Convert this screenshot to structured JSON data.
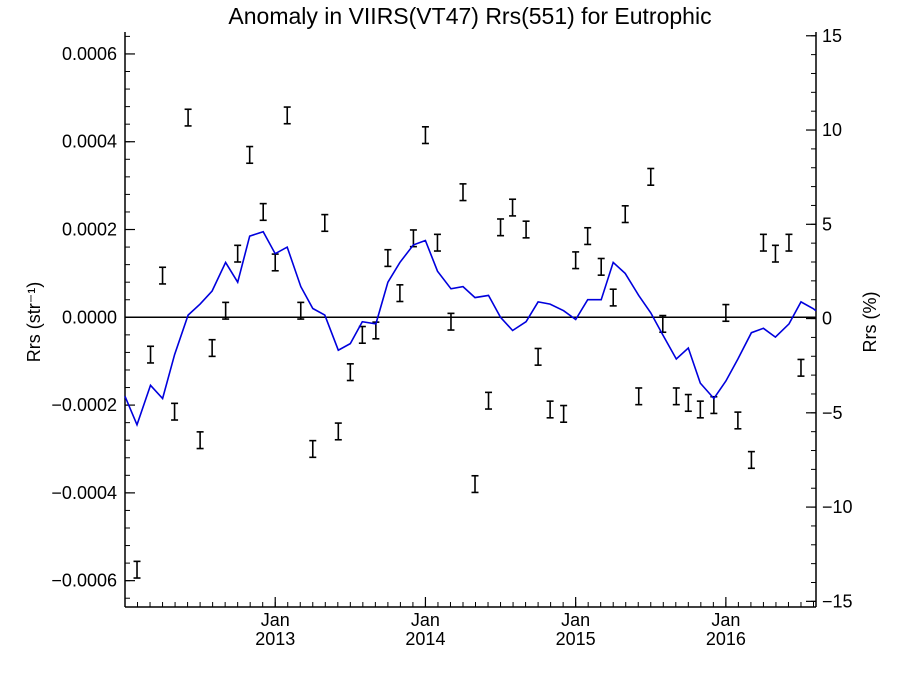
{
  "chart_data": {
    "type": "line",
    "title": "Anomaly in VIIRS(VT47) Rrs(551) for Eutrophic",
    "ylabel_left": "Rrs (str⁻¹)",
    "ylabel_right": "Rrs (%)",
    "ylim_left": [
      -0.00066,
      0.00065
    ],
    "ylim_right": [
      -15.3,
      15.2
    ],
    "xlim": [
      2012.0,
      2016.6
    ],
    "grid": false,
    "zero_line": true,
    "left_ticks": [
      {
        "value": 0.0006,
        "label": "0.0006"
      },
      {
        "value": 0.0004,
        "label": "0.0004"
      },
      {
        "value": 0.0002,
        "label": "0.0002"
      },
      {
        "value": 0.0,
        "label": "0.0000"
      },
      {
        "value": -0.0002,
        "label": "−0.0002"
      },
      {
        "value": -0.0004,
        "label": "−0.0004"
      },
      {
        "value": -0.0006,
        "label": "−0.0006"
      }
    ],
    "right_ticks": [
      {
        "value": 15,
        "label": "15"
      },
      {
        "value": 10,
        "label": "10"
      },
      {
        "value": 5,
        "label": "5"
      },
      {
        "value": 0,
        "label": "0"
      },
      {
        "value": -5,
        "label": "−5"
      },
      {
        "value": -10,
        "label": "−10"
      },
      {
        "value": -15,
        "label": "−15"
      }
    ],
    "x_ticks": [
      {
        "value": 2013.0,
        "month": "Jan",
        "year": "2013"
      },
      {
        "value": 2014.0,
        "month": "Jan",
        "year": "2014"
      },
      {
        "value": 2015.0,
        "month": "Jan",
        "year": "2015"
      },
      {
        "value": 2016.0,
        "month": "Jan",
        "year": "2016"
      }
    ],
    "series": [
      {
        "type": "errorbar",
        "color": "#000000",
        "x": [
          2012.08,
          2012.17,
          2012.25,
          2012.33,
          2012.42,
          2012.5,
          2012.58,
          2012.67,
          2012.75,
          2012.83,
          2012.92,
          2013.0,
          2013.08,
          2013.17,
          2013.25,
          2013.33,
          2013.42,
          2013.5,
          2013.58,
          2013.67,
          2013.75,
          2013.83,
          2013.92,
          2014.0,
          2014.08,
          2014.17,
          2014.25,
          2014.33,
          2014.42,
          2014.5,
          2014.58,
          2014.67,
          2014.75,
          2014.83,
          2014.92,
          2015.0,
          2015.08,
          2015.17,
          2015.25,
          2015.33,
          2015.42,
          2015.5,
          2015.58,
          2015.67,
          2015.75,
          2015.83,
          2015.92,
          2016.0,
          2016.08,
          2016.17,
          2016.25,
          2016.33,
          2016.42,
          2016.5
        ],
        "y": [
          -0.000575,
          -8.5e-05,
          9.5e-05,
          -0.000215,
          0.000455,
          -0.00028,
          -7e-05,
          1.5e-05,
          0.000145,
          0.00037,
          0.00024,
          0.000125,
          0.00046,
          1.5e-05,
          -0.0003,
          0.000215,
          -0.00026,
          -0.000125,
          -4e-05,
          -3e-05,
          0.000135,
          5.5e-05,
          0.00018,
          0.000415,
          0.00017,
          -1e-05,
          0.000285,
          -0.00038,
          -0.00019,
          0.000205,
          0.00025,
          0.0002,
          -9e-05,
          -0.00021,
          -0.00022,
          0.00013,
          0.000185,
          0.000115,
          4.5e-05,
          0.000235,
          -0.00018,
          0.00032,
          -1.5e-05,
          -0.00018,
          -0.000195,
          -0.00021,
          -0.0002,
          1e-05,
          -0.000235,
          -0.000325,
          0.00017,
          0.000145,
          0.00017,
          -0.000115
        ],
        "err": 1.9e-05
      },
      {
        "type": "line",
        "color": "#0000dd",
        "x": [
          2012.0,
          2012.08,
          2012.17,
          2012.25,
          2012.33,
          2012.42,
          2012.5,
          2012.58,
          2012.67,
          2012.75,
          2012.83,
          2012.92,
          2013.0,
          2013.08,
          2013.17,
          2013.25,
          2013.33,
          2013.42,
          2013.5,
          2013.58,
          2013.67,
          2013.75,
          2013.83,
          2013.92,
          2014.0,
          2014.08,
          2014.17,
          2014.25,
          2014.33,
          2014.42,
          2014.5,
          2014.58,
          2014.67,
          2014.75,
          2014.83,
          2014.92,
          2015.0,
          2015.08,
          2015.17,
          2015.25,
          2015.33,
          2015.42,
          2015.5,
          2015.58,
          2015.67,
          2015.75,
          2015.83,
          2015.92,
          2016.0,
          2016.08,
          2016.17,
          2016.25,
          2016.33,
          2016.42,
          2016.5,
          2016.58,
          2016.6
        ],
        "y": [
          -0.00018,
          -0.000245,
          -0.000155,
          -0.000185,
          -8.5e-05,
          5e-06,
          3e-05,
          6e-05,
          0.000125,
          8e-05,
          0.000185,
          0.000195,
          0.000145,
          0.00016,
          7e-05,
          2e-05,
          5e-06,
          -7.5e-05,
          -6e-05,
          -1e-05,
          -1.5e-05,
          8e-05,
          0.000125,
          0.000165,
          0.000175,
          0.000105,
          6.5e-05,
          7e-05,
          4.5e-05,
          5e-05,
          0.0,
          -3e-05,
          -1e-05,
          3.5e-05,
          3e-05,
          1.5e-05,
          -5e-06,
          4e-05,
          4e-05,
          0.000125,
          0.0001,
          5e-05,
          1e-05,
          -4e-05,
          -9.5e-05,
          -7e-05,
          -0.00015,
          -0.000185,
          -0.000145,
          -9.5e-05,
          -3.5e-05,
          -2.5e-05,
          -4.5e-05,
          -1.5e-05,
          3.5e-05,
          2e-05,
          1.5e-05
        ]
      }
    ]
  }
}
